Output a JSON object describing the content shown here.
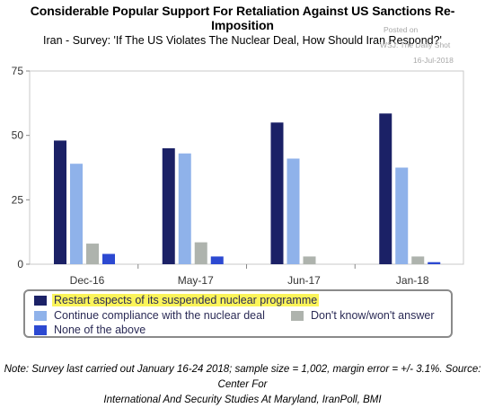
{
  "header": {
    "title": "Considerable Popular Support For Retaliation Against US Sanctions Re-Imposition",
    "subtitle": "Iran - Survey: 'If The US Violates The Nuclear Deal, How Should Iran Respond?'",
    "stamp_line1": "Posted on",
    "stamp_line2": "WSJ: The Daily Shot",
    "stamp_line3": "16-Jul-2018"
  },
  "chart_data": {
    "type": "bar",
    "categories": [
      "Dec-16",
      "May-17",
      "Jun-17",
      "Jan-18"
    ],
    "ylim": [
      0,
      75
    ],
    "yticks": [
      0,
      25,
      50,
      75
    ],
    "ytick_labels": [
      "0",
      "25",
      "50",
      "75"
    ],
    "series": [
      {
        "name": "Restart aspects of its suspended nuclear programme",
        "color": "#1b2166",
        "values": [
          48,
          45,
          55,
          58.5
        ]
      },
      {
        "name": "Continue compliance with the nuclear deal",
        "color": "#8fb2ea",
        "values": [
          39,
          43,
          41,
          37.5
        ]
      },
      {
        "name": "Don't know/won't answer",
        "color": "#aeb3ad",
        "values": [
          8,
          8.5,
          3,
          3
        ]
      },
      {
        "name": "None of the above",
        "color": "#2c49d1",
        "values": [
          4,
          3,
          0,
          0.8
        ]
      }
    ],
    "legend_position": "bottom"
  },
  "legend": {
    "highlight_color": "#fbf45a",
    "highlighted_series": "Restart aspects of its suspended nuclear programme"
  },
  "footer": {
    "note_line1": "Note: Survey last carried out January 16-24 2018; sample size = 1,002, margin error = +/- 3.1%. Source: Center For",
    "note_line2": "International And Security Studies At Maryland, IranPoll, BMI"
  }
}
